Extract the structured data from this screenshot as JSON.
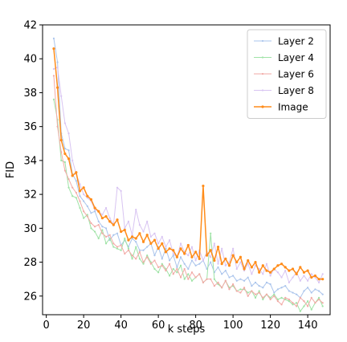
{
  "chart_data": {
    "type": "line",
    "xlabel": "k steps",
    "ylabel": "FID",
    "xlim": [
      -2,
      152
    ],
    "ylim": [
      24.9,
      42
    ],
    "xticks": [
      0,
      20,
      40,
      60,
      80,
      100,
      120,
      140
    ],
    "yticks": [
      26,
      28,
      30,
      32,
      34,
      36,
      38,
      40,
      42
    ],
    "legend_position": "top-right",
    "grid": false,
    "x": [
      4,
      6,
      8,
      10,
      12,
      14,
      16,
      18,
      20,
      22,
      24,
      26,
      28,
      30,
      32,
      34,
      36,
      38,
      40,
      42,
      44,
      46,
      48,
      50,
      52,
      54,
      56,
      58,
      60,
      62,
      64,
      66,
      68,
      70,
      72,
      74,
      76,
      78,
      80,
      82,
      84,
      86,
      88,
      90,
      92,
      94,
      96,
      98,
      100,
      102,
      104,
      106,
      108,
      110,
      112,
      114,
      116,
      118,
      120,
      122,
      124,
      126,
      128,
      130,
      132,
      134,
      136,
      138,
      140,
      142,
      144,
      146,
      148
    ],
    "series": [
      {
        "name": "Layer 2",
        "color": "#aac4ec",
        "values": [
          41.2,
          39.8,
          35.6,
          34.7,
          34.6,
          33.2,
          32.8,
          31.9,
          31.6,
          31.3,
          30.9,
          31.0,
          30.4,
          30.1,
          30.0,
          29.3,
          29.6,
          29.7,
          29.0,
          29.3,
          28.9,
          29.4,
          29.2,
          28.7,
          28.7,
          28.9,
          29.1,
          28.4,
          28.9,
          28.2,
          28.8,
          28.1,
          28.4,
          27.7,
          28.3,
          27.9,
          27.6,
          28.1,
          27.8,
          27.9,
          28.1,
          27.6,
          28.0,
          27.4,
          27.7,
          27.3,
          27.5,
          27.1,
          27.2,
          26.9,
          27.0,
          26.9,
          27.1,
          26.6,
          26.8,
          26.6,
          26.5,
          26.8,
          26.7,
          26.2,
          26.4,
          26.5,
          26.6,
          26.3,
          26.2,
          26.1,
          25.9,
          26.3,
          26.5,
          26.2,
          26.4,
          26.3,
          26.1
        ]
      },
      {
        "name": "Layer 4",
        "color": "#9fe3a6",
        "values": [
          37.6,
          36.4,
          34.0,
          33.9,
          32.4,
          31.9,
          31.8,
          31.2,
          30.6,
          30.8,
          30.0,
          29.8,
          29.4,
          29.9,
          29.1,
          29.4,
          28.9,
          28.8,
          28.7,
          29.4,
          28.8,
          28.2,
          28.9,
          28.2,
          27.9,
          28.4,
          28.0,
          27.6,
          27.4,
          27.9,
          27.6,
          27.2,
          27.6,
          27.4,
          27.8,
          27.0,
          27.3,
          26.9,
          27.1,
          27.3,
          26.8,
          27.0,
          29.7,
          27.0,
          26.7,
          26.5,
          26.9,
          26.5,
          26.6,
          26.3,
          26.4,
          26.4,
          26.2,
          26.3,
          25.9,
          26.3,
          25.8,
          26.1,
          25.9,
          26.1,
          25.8,
          25.9,
          25.8,
          25.7,
          25.5,
          25.6,
          25.1,
          25.4,
          25.7,
          25.2,
          25.6,
          25.9,
          25.4
        ]
      },
      {
        "name": "Layer 6",
        "color": "#f2aaa6",
        "values": [
          39.0,
          36.0,
          34.5,
          33.4,
          32.9,
          32.4,
          32.1,
          31.6,
          31.0,
          30.7,
          30.3,
          30.1,
          30.2,
          29.7,
          29.5,
          29.6,
          29.1,
          28.9,
          29.0,
          28.5,
          28.7,
          28.4,
          28.2,
          28.6,
          28.0,
          28.3,
          27.9,
          28.1,
          27.7,
          27.8,
          27.5,
          27.9,
          27.3,
          27.6,
          27.1,
          27.6,
          27.0,
          27.4,
          27.1,
          27.3,
          26.8,
          27.0,
          27.0,
          26.6,
          26.8,
          26.5,
          26.9,
          26.4,
          26.7,
          26.3,
          26.2,
          26.5,
          26.0,
          26.3,
          26.1,
          26.2,
          25.9,
          26.1,
          25.8,
          26.0,
          25.7,
          25.5,
          25.9,
          25.8,
          25.6,
          25.4,
          25.9,
          25.7,
          25.4,
          25.9,
          25.6,
          25.8,
          25.6
        ]
      },
      {
        "name": "Layer 8",
        "color": "#d8c4f2",
        "values": [
          39.4,
          39.5,
          37.8,
          36.2,
          35.6,
          34.0,
          33.2,
          32.6,
          32.0,
          31.8,
          31.6,
          31.1,
          31.0,
          30.8,
          31.2,
          30.6,
          30.2,
          32.4,
          32.2,
          30.0,
          30.4,
          29.6,
          31.1,
          30.2,
          29.8,
          30.4,
          29.5,
          29.7,
          29.1,
          29.5,
          28.9,
          29.3,
          28.5,
          28.3,
          29.1,
          28.6,
          28.4,
          28.9,
          28.1,
          28.7,
          28.1,
          28.6,
          28.3,
          29.1,
          27.9,
          28.8,
          27.8,
          28.0,
          28.8,
          27.6,
          28.0,
          27.5,
          27.9,
          27.3,
          27.8,
          27.6,
          27.3,
          27.9,
          27.2,
          27.6,
          27.4,
          27.1,
          27.5,
          26.8,
          27.1,
          27.4,
          26.9,
          27.2,
          26.9,
          27.3,
          27.1,
          26.8,
          27.3
        ]
      },
      {
        "name": "Image",
        "color": "#ff8c1a",
        "values": [
          40.6,
          38.3,
          35.2,
          34.4,
          34.1,
          33.1,
          33.3,
          32.2,
          32.4,
          31.9,
          31.7,
          31.2,
          31.0,
          30.6,
          30.7,
          30.4,
          30.2,
          30.5,
          29.8,
          29.9,
          29.3,
          29.5,
          29.4,
          29.7,
          29.2,
          29.6,
          29.1,
          29.3,
          28.8,
          29.1,
          28.6,
          28.8,
          28.7,
          28.3,
          28.8,
          28.5,
          29.0,
          28.3,
          28.6,
          28.2,
          32.5,
          28.4,
          28.7,
          28.1,
          28.9,
          27.9,
          28.2,
          27.8,
          28.4,
          28.0,
          28.3,
          27.6,
          28.1,
          27.7,
          28.0,
          27.4,
          27.8,
          27.5,
          27.4,
          27.6,
          27.8,
          27.9,
          27.7,
          27.5,
          27.6,
          27.3,
          27.7,
          27.4,
          27.5,
          27.1,
          27.2,
          27.0,
          27.0
        ]
      }
    ]
  }
}
